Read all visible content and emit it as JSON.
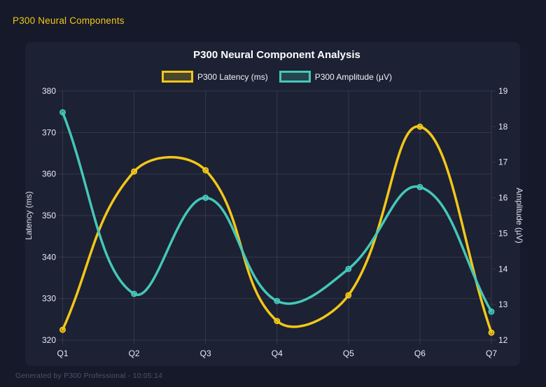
{
  "header": {
    "title": "P300 Neural Components"
  },
  "footer": {
    "text": "Generated by P300 Professional - 10:05:14"
  },
  "chart_data": {
    "type": "line",
    "title": "P300 Neural Component Analysis",
    "categories": [
      "Q1",
      "Q2",
      "Q3",
      "Q4",
      "Q5",
      "Q6",
      "Q7"
    ],
    "series": [
      {
        "name": "P300 Latency (ms)",
        "axis": "left",
        "color": "#f2c718",
        "values": [
          322.5,
          360.6,
          360.9,
          324.6,
          330.8,
          371.4,
          321.8
        ]
      },
      {
        "name": "P300 Amplitude (µV)",
        "axis": "right",
        "color": "#45c7b8",
        "values": [
          18.4,
          13.3,
          16.0,
          13.1,
          14.0,
          16.3,
          12.8
        ]
      }
    ],
    "left_axis": {
      "label": "Latency (ms)",
      "min": 320,
      "max": 380,
      "step": 10
    },
    "right_axis": {
      "label": "Amplitude (µV)",
      "min": 12,
      "max": 19,
      "step": 1
    },
    "legend_position": "top",
    "grid": true,
    "line_tension": 0.4,
    "colors": {
      "background": "#151929",
      "panel": "#1c2134",
      "grid": "rgba(255,255,255,0.10)",
      "tick_text": "#e8ebf4",
      "axis_title_text": "#dde1ec",
      "title_text": "#ffffff",
      "accent": "#f2c718"
    }
  }
}
